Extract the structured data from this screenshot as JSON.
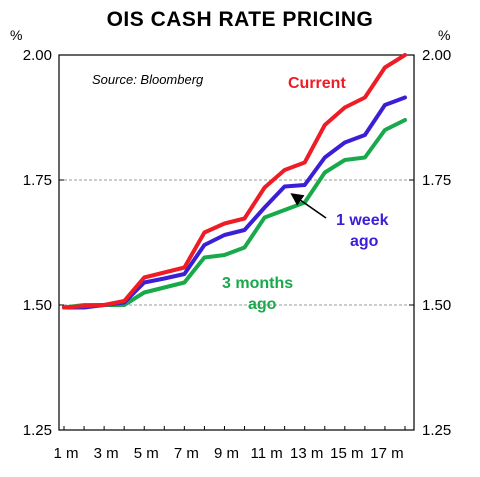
{
  "chart_data": {
    "type": "line",
    "title": "OIS CASH RATE PRICING",
    "y_unit_left": "%",
    "y_unit_right": "%",
    "source": "Source: Bloomberg",
    "ylim": [
      1.25,
      2.0
    ],
    "yticks": [
      "1.25",
      "1.50",
      "1.75",
      "2.00"
    ],
    "x_tick_labels": [
      "1 m",
      "3 m",
      "5 m",
      "7 m",
      "9 m",
      "11 m",
      "13 m",
      "15 m",
      "17 m"
    ],
    "grid": {
      "horizontal_dashed_at": [
        1.75,
        1.5
      ]
    },
    "x": [
      1,
      2,
      3,
      4,
      5,
      6,
      7,
      8,
      9,
      10,
      11,
      12,
      13,
      14,
      15,
      16,
      17,
      18
    ],
    "series": [
      {
        "name": "Current",
        "color": "#ee1c25",
        "values": [
          1.495,
          1.498,
          1.5,
          1.508,
          1.555,
          1.565,
          1.575,
          1.645,
          1.663,
          1.673,
          1.735,
          1.77,
          1.785,
          1.86,
          1.895,
          1.915,
          1.975,
          2.0
        ]
      },
      {
        "name": "1 week ago",
        "color": "#3b1fd6",
        "values": [
          1.495,
          1.495,
          1.5,
          1.505,
          1.545,
          1.553,
          1.562,
          1.62,
          1.64,
          1.65,
          1.695,
          1.737,
          1.74,
          1.795,
          1.825,
          1.84,
          1.9,
          1.915
        ]
      },
      {
        "name": "3 months ago",
        "color": "#17a94a",
        "values": [
          1.495,
          1.5,
          1.5,
          1.5,
          1.525,
          1.535,
          1.545,
          1.595,
          1.6,
          1.615,
          1.675,
          1.69,
          1.705,
          1.765,
          1.79,
          1.795,
          1.85,
          1.87
        ]
      }
    ],
    "annotations": {
      "current": "Current",
      "week_line1": "1 week",
      "week_line2": "ago",
      "months_line1": "3 months",
      "months_line2": "ago"
    }
  }
}
